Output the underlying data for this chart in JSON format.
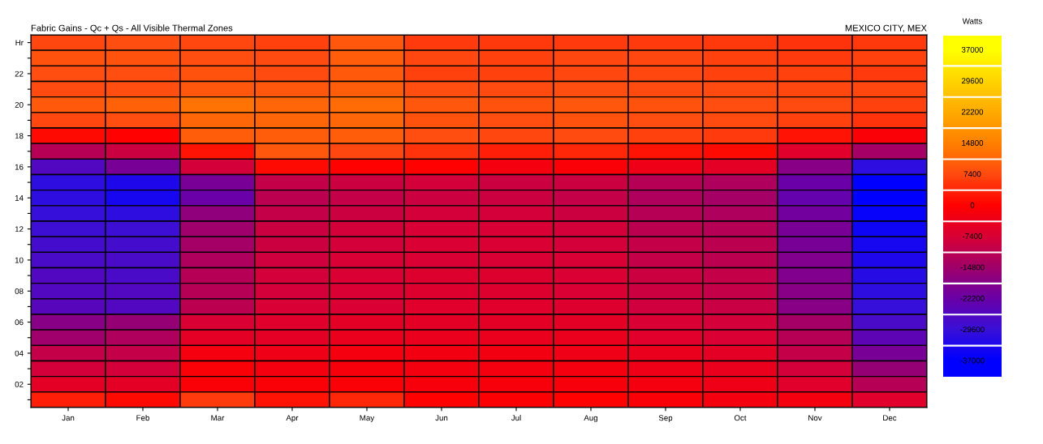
{
  "chart_data": {
    "type": "heatmap",
    "title": "Fabric Gains - Qc + Qs - All Visible Thermal Zones",
    "subtitle": "MEXICO CITY, MEX",
    "clabel": "Watts",
    "categories": [
      "Jan",
      "Feb",
      "Mar",
      "Apr",
      "May",
      "Jun",
      "Jul",
      "Aug",
      "Sep",
      "Oct",
      "Nov",
      "Dec"
    ],
    "y_categories": [
      "Hr",
      null,
      "22",
      null,
      "20",
      null,
      "18",
      null,
      "16",
      null,
      "14",
      null,
      "12",
      null,
      "10",
      null,
      "08",
      null,
      "06",
      null,
      "04",
      null,
      "02",
      null
    ],
    "cells": [
      [
        7000,
        8000,
        7000,
        6500,
        9000,
        6000,
        5500,
        6000,
        6000,
        5500,
        5000,
        5500
      ],
      [
        8500,
        8500,
        8000,
        7500,
        10000,
        7000,
        6500,
        7000,
        7000,
        6500,
        6000,
        6500
      ],
      [
        8000,
        8000,
        8500,
        7500,
        9500,
        6500,
        6500,
        7000,
        7000,
        6500,
        6500,
        6000
      ],
      [
        7500,
        8000,
        9000,
        9000,
        10000,
        8000,
        7500,
        8000,
        7500,
        7500,
        7000,
        7000
      ],
      [
        9500,
        10500,
        13000,
        11000,
        12000,
        9000,
        8500,
        9000,
        8500,
        8000,
        7500,
        6500
      ],
      [
        7000,
        8000,
        11000,
        11000,
        11000,
        8500,
        8000,
        8500,
        8000,
        7500,
        6500,
        5000
      ],
      [
        1000,
        0,
        10000,
        10000,
        10000,
        8000,
        7000,
        7500,
        6500,
        6000,
        2000,
        -1000
      ],
      [
        -12000,
        -9000,
        2000,
        9000,
        7000,
        5000,
        3000,
        4000,
        2000,
        1000,
        -6000,
        -14000
      ],
      [
        -26000,
        -20000,
        -8000,
        1000,
        0,
        0,
        -2000,
        -1000,
        -3000,
        -5000,
        -18000,
        -31000
      ],
      [
        -31000,
        -33000,
        -20000,
        -10000,
        -9000,
        -8000,
        -9000,
        -9000,
        -12000,
        -13000,
        -22000,
        -37000
      ],
      [
        -31000,
        -34000,
        -22000,
        -11000,
        -10000,
        -9000,
        -9000,
        -10000,
        -13000,
        -14000,
        -23000,
        -37000
      ],
      [
        -30000,
        -31000,
        -17000,
        -10000,
        -9000,
        -8000,
        -8000,
        -9000,
        -12000,
        -13000,
        -21000,
        -36000
      ],
      [
        -29000,
        -29000,
        -15000,
        -9000,
        -8000,
        -7500,
        -7500,
        -8000,
        -11000,
        -12000,
        -20000,
        -35000
      ],
      [
        -28000,
        -28000,
        -14000,
        -9000,
        -8000,
        -7000,
        -7000,
        -8000,
        -10000,
        -11000,
        -20000,
        -34000
      ],
      [
        -27000,
        -27000,
        -13000,
        -8500,
        -7500,
        -7000,
        -7000,
        -7500,
        -10000,
        -11000,
        -19000,
        -33000
      ],
      [
        -26000,
        -27000,
        -12000,
        -8000,
        -7000,
        -6500,
        -6500,
        -7000,
        -9000,
        -10000,
        -19000,
        -32000
      ],
      [
        -26000,
        -26000,
        -12000,
        -8000,
        -7000,
        -6500,
        -6500,
        -7000,
        -9000,
        -10000,
        -18000,
        -31000
      ],
      [
        -25000,
        -26000,
        -11000,
        -7500,
        -7000,
        -6000,
        -6000,
        -6500,
        -8500,
        -9500,
        -18000,
        -30000
      ],
      [
        -18000,
        -16000,
        -7000,
        -6000,
        -5000,
        -5000,
        -5000,
        -5000,
        -7000,
        -8000,
        -14000,
        -27000
      ],
      [
        -15000,
        -13000,
        -5000,
        -5000,
        -4000,
        -4000,
        -4000,
        -4000,
        -6000,
        -7000,
        -12000,
        -24000
      ],
      [
        -10000,
        -10000,
        -2000,
        -3000,
        -2000,
        -2500,
        -2500,
        -3000,
        -4000,
        -5000,
        -10000,
        -20000
      ],
      [
        -8000,
        -8000,
        -1000,
        -2000,
        -1500,
        -2000,
        -2000,
        -2000,
        -3000,
        -4000,
        -8000,
        -16000
      ],
      [
        -5000,
        -5000,
        -1000,
        -1000,
        -1000,
        -1500,
        -1500,
        -1500,
        -2000,
        -3000,
        -6000,
        -12000
      ],
      [
        3000,
        1000,
        6000,
        2000,
        4000,
        0,
        -500,
        0,
        -1000,
        -2000,
        -2000,
        -6000
      ]
    ],
    "clim": [
      -37000,
      37000
    ],
    "cticks": [
      37000,
      29600,
      22200,
      14800,
      7400,
      0,
      -7400,
      -14800,
      -22200,
      -29600,
      -37000
    ]
  }
}
